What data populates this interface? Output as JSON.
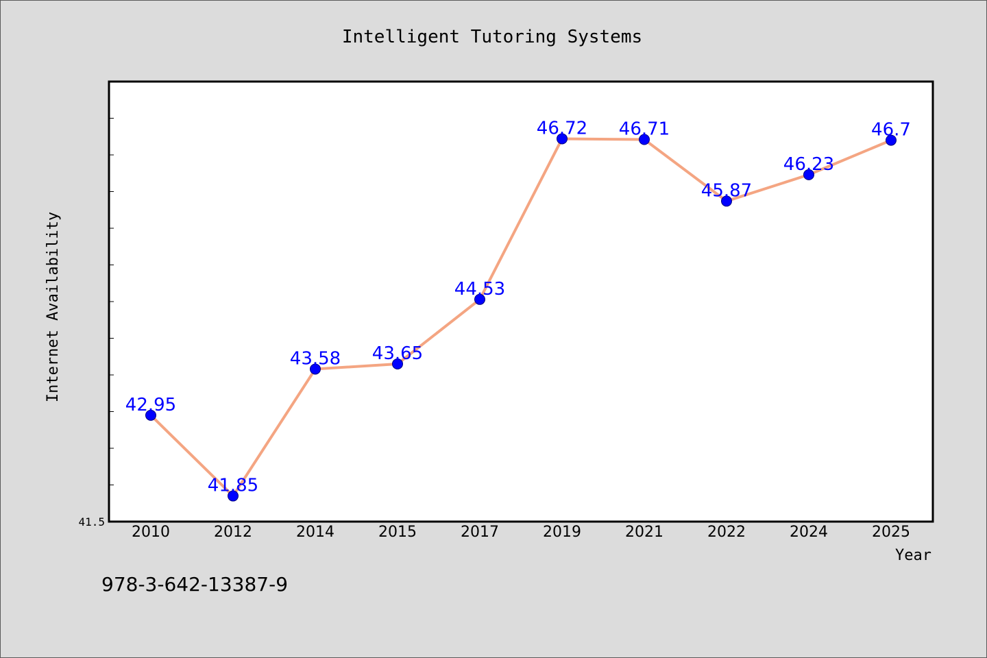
{
  "chart_data": {
    "type": "line",
    "title": "Intelligent Tutoring Systems",
    "xlabel": "Year",
    "ylabel": "Internet Availability",
    "categories": [
      "2010",
      "2012",
      "2014",
      "2015",
      "2017",
      "2019",
      "2021",
      "2022",
      "2024",
      "2025"
    ],
    "values": [
      42.95,
      41.85,
      43.58,
      43.65,
      44.53,
      46.72,
      46.71,
      45.87,
      46.23,
      46.7
    ],
    "data_labels": [
      "42.95",
      "41.85",
      "43.58",
      "43.65",
      "44.53",
      "46.72",
      "46.71",
      "45.87",
      "46.23",
      "46.7"
    ],
    "ylim": [
      41.5,
      47.5
    ],
    "y_min_label": "41.5",
    "y_minor_tick_step": 0.5,
    "grid": false,
    "legend": "none",
    "colors": {
      "line": "#f4a582",
      "marker": "#0000ff",
      "marker_edge": "#000080",
      "data_label": "#0000ff",
      "plot_background": "#ffffff",
      "figure_background": "#dcdcdc"
    }
  },
  "footnote": "978-3-642-13387-9"
}
